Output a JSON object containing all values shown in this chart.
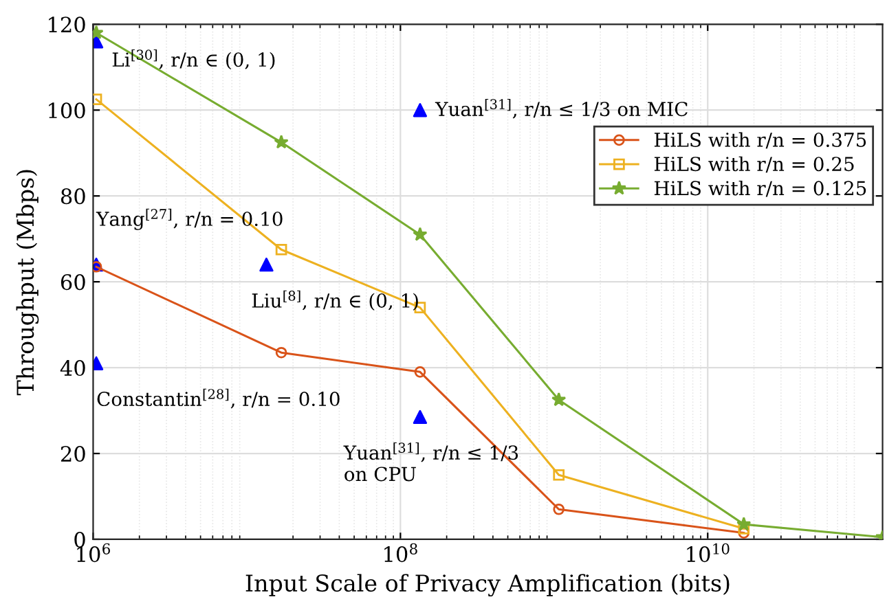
{
  "chart_data": {
    "type": "line",
    "xlabel": "Input Scale of Privacy Amplification (bits)",
    "ylabel": "Throughput (Mbps)",
    "log": "x",
    "grid": true,
    "legend": "top right",
    "xlim": [
      1000000,
      137438953472
    ],
    "xticks": [
      {
        "value": 1000000,
        "label": "10$^{6}$"
      },
      {
        "value": 100000000,
        "label": "10$^{8}$"
      },
      {
        "value": 10000000000,
        "label": "10$^{10}$"
      }
    ],
    "ylim": [
      0,
      120
    ],
    "yticks": [
      0,
      20,
      40,
      60,
      80,
      100,
      120
    ],
    "series": [
      {
        "name": "HiLS with r/n = 0.375",
        "color": "#d95319",
        "marker": "circle",
        "x": [
          1048576,
          16777216,
          134217728,
          1073741824,
          17179869184
        ],
        "values": [
          63.5,
          43.5,
          39,
          7,
          1.5
        ]
      },
      {
        "name": "HiLS with r/n = 0.25",
        "color": "#edb120",
        "marker": "square",
        "x": [
          1048576,
          16777216,
          134217728,
          1073741824,
          17179869184
        ],
        "values": [
          102.5,
          67.5,
          54,
          15,
          2.5
        ]
      },
      {
        "name": "HiLS with r/n = 0.125",
        "color": "#77ac30",
        "marker": "star",
        "x": [
          1048576,
          16777216,
          134217728,
          1073741824,
          17179869184,
          137438953472
        ],
        "values": [
          118,
          92.5,
          71,
          32.5,
          3.5,
          0.5
        ]
      },
      {
        "type": "scatter",
        "color": "#0000ff",
        "marker": "triangle",
        "x": [
          1048576,
          1048576,
          1048576,
          13421772,
          134217728,
          134217728
        ],
        "values": [
          116,
          64,
          41,
          64,
          100,
          28.5
        ]
      }
    ],
    "annotations": [
      {
        "text": "Li$^{[30]}$, r/n ∈ (0, 1)",
        "x": 1048576,
        "y": 116
      },
      {
        "text": "Yang$^{[27]}$, r/n = 0.10",
        "x": 1048576,
        "y": 64
      },
      {
        "text": "Constantin$^{[28]}$, r/n = 0.10",
        "x": 1048576,
        "y": 41
      },
      {
        "text": "Liu$^{[8]}$, r/n ∈ (0, 1)",
        "x": 13421772,
        "y": 64
      },
      {
        "text": "Yuan$^{[31]}$, r/n ≤ 1/3 on MIC",
        "x": 134217728,
        "y": 100
      },
      {
        "text": "Yuan$^{[31]}$, r/n ≤ 1/3\non CPU",
        "x": 134217728,
        "y": 28.5
      }
    ]
  }
}
